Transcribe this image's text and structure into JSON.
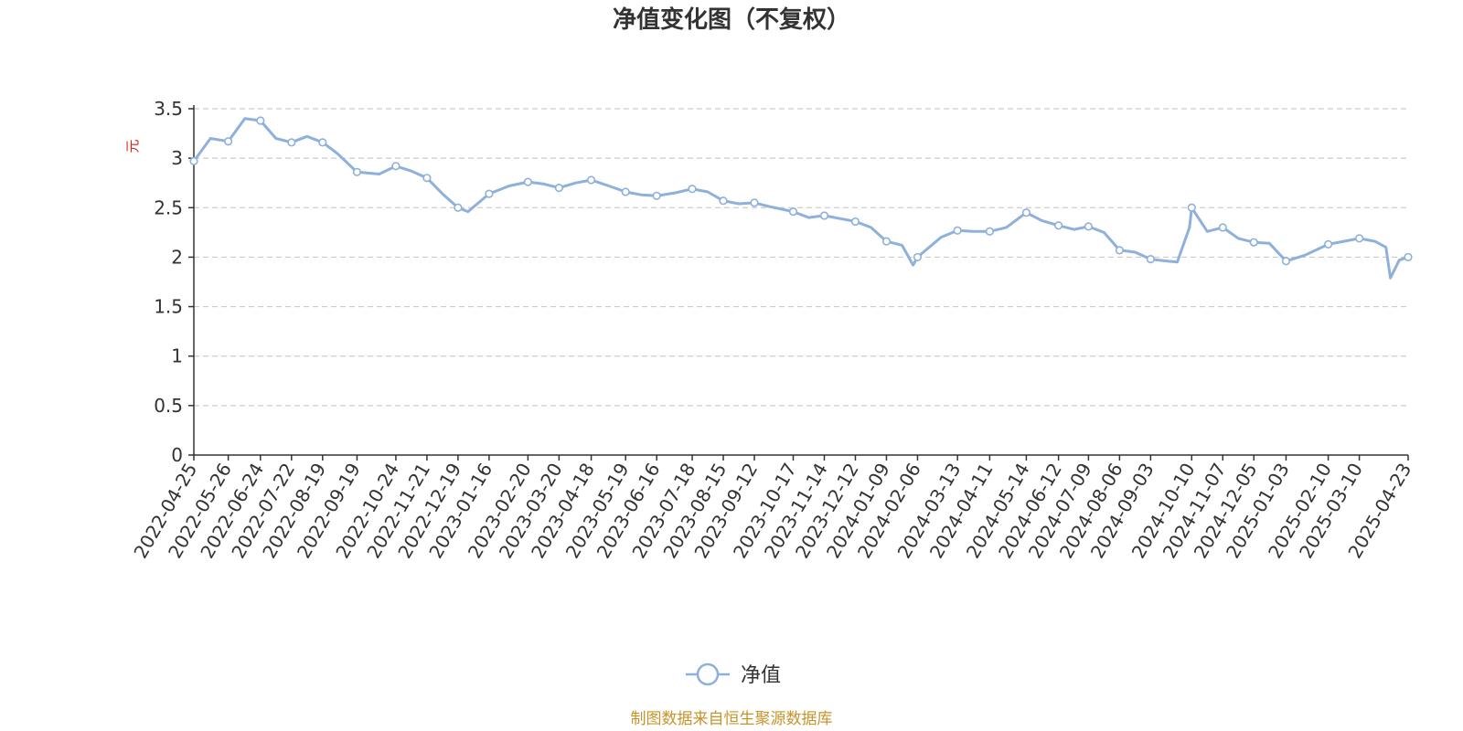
{
  "chart_data": {
    "type": "line",
    "title": "净值变化图（不复权）",
    "ylabel": "元",
    "ylim": [
      0,
      3.5
    ],
    "y_ticks": [
      "0",
      "0.5",
      "1",
      "1.5",
      "2",
      "2.5",
      "3",
      "3.5"
    ],
    "x_ticks": [
      "2022-04-25",
      "2022-05-26",
      "2022-06-24",
      "2022-07-22",
      "2022-08-19",
      "2022-09-19",
      "2022-10-24",
      "2022-11-21",
      "2022-12-19",
      "2023-01-16",
      "2023-02-20",
      "2023-03-20",
      "2023-04-18",
      "2023-05-19",
      "2023-06-16",
      "2023-07-18",
      "2023-08-15",
      "2023-09-12",
      "2023-10-17",
      "2023-11-14",
      "2023-12-12",
      "2024-01-09",
      "2024-02-06",
      "2024-03-13",
      "2024-04-11",
      "2024-05-14",
      "2024-06-12",
      "2024-07-09",
      "2024-08-06",
      "2024-09-03",
      "2024-10-10",
      "2024-11-07",
      "2024-12-05",
      "2025-01-03",
      "2025-02-10",
      "2025-03-10",
      "2025-04-23"
    ],
    "grid": "dashed-horizontal",
    "legend_placement": "bottom-center",
    "series": [
      {
        "name": "净值",
        "color": "#8eb0dc",
        "dates": [
          "2022-04-25",
          "2022-05-10",
          "2022-05-26",
          "2022-06-10",
          "2022-06-24",
          "2022-07-08",
          "2022-07-22",
          "2022-08-05",
          "2022-08-19",
          "2022-09-01",
          "2022-09-19",
          "2022-10-09",
          "2022-10-24",
          "2022-11-07",
          "2022-11-21",
          "2022-12-05",
          "2022-12-19",
          "2022-12-28",
          "2023-01-16",
          "2023-02-03",
          "2023-02-20",
          "2023-03-06",
          "2023-03-20",
          "2023-04-04",
          "2023-04-18",
          "2023-05-04",
          "2023-05-19",
          "2023-06-02",
          "2023-06-16",
          "2023-07-03",
          "2023-07-18",
          "2023-08-01",
          "2023-08-15",
          "2023-08-29",
          "2023-09-12",
          "2023-09-26",
          "2023-10-17",
          "2023-10-31",
          "2023-11-14",
          "2023-11-28",
          "2023-12-12",
          "2023-12-26",
          "2024-01-09",
          "2024-01-23",
          "2024-02-02",
          "2024-02-06",
          "2024-02-27",
          "2024-03-13",
          "2024-03-27",
          "2024-04-11",
          "2024-04-26",
          "2024-05-14",
          "2024-05-28",
          "2024-06-12",
          "2024-06-26",
          "2024-07-09",
          "2024-07-23",
          "2024-08-06",
          "2024-08-20",
          "2024-09-03",
          "2024-09-18",
          "2024-09-27",
          "2024-10-08",
          "2024-10-10",
          "2024-10-24",
          "2024-11-07",
          "2024-11-21",
          "2024-12-05",
          "2024-12-19",
          "2025-01-03",
          "2025-01-20",
          "2025-02-10",
          "2025-02-24",
          "2025-03-10",
          "2025-03-24",
          "2025-04-03",
          "2025-04-07",
          "2025-04-15",
          "2025-04-23"
        ],
        "values": [
          2.97,
          3.2,
          3.17,
          3.4,
          3.38,
          3.2,
          3.16,
          3.22,
          3.16,
          3.05,
          2.86,
          2.84,
          2.92,
          2.87,
          2.8,
          2.64,
          2.5,
          2.46,
          2.64,
          2.72,
          2.76,
          2.74,
          2.7,
          2.75,
          2.78,
          2.72,
          2.66,
          2.63,
          2.62,
          2.65,
          2.69,
          2.66,
          2.57,
          2.54,
          2.55,
          2.51,
          2.46,
          2.4,
          2.42,
          2.39,
          2.36,
          2.3,
          2.16,
          2.12,
          1.92,
          2.0,
          2.2,
          2.27,
          2.26,
          2.26,
          2.3,
          2.45,
          2.37,
          2.32,
          2.28,
          2.31,
          2.25,
          2.07,
          2.05,
          1.98,
          1.96,
          1.95,
          2.3,
          2.5,
          2.26,
          2.3,
          2.19,
          2.15,
          2.14,
          1.96,
          2.02,
          2.13,
          2.16,
          2.19,
          2.16,
          2.1,
          1.79,
          1.97,
          2.0
        ]
      }
    ]
  },
  "legend": {
    "label": "净值"
  },
  "source": {
    "text": "制图数据来自恒生聚源数据库",
    "color": "#c8932a"
  },
  "colors": {
    "line": "#8eb0dc",
    "axis": "#333333",
    "grid": "#cccccc",
    "ylabel": "#e0201a"
  }
}
